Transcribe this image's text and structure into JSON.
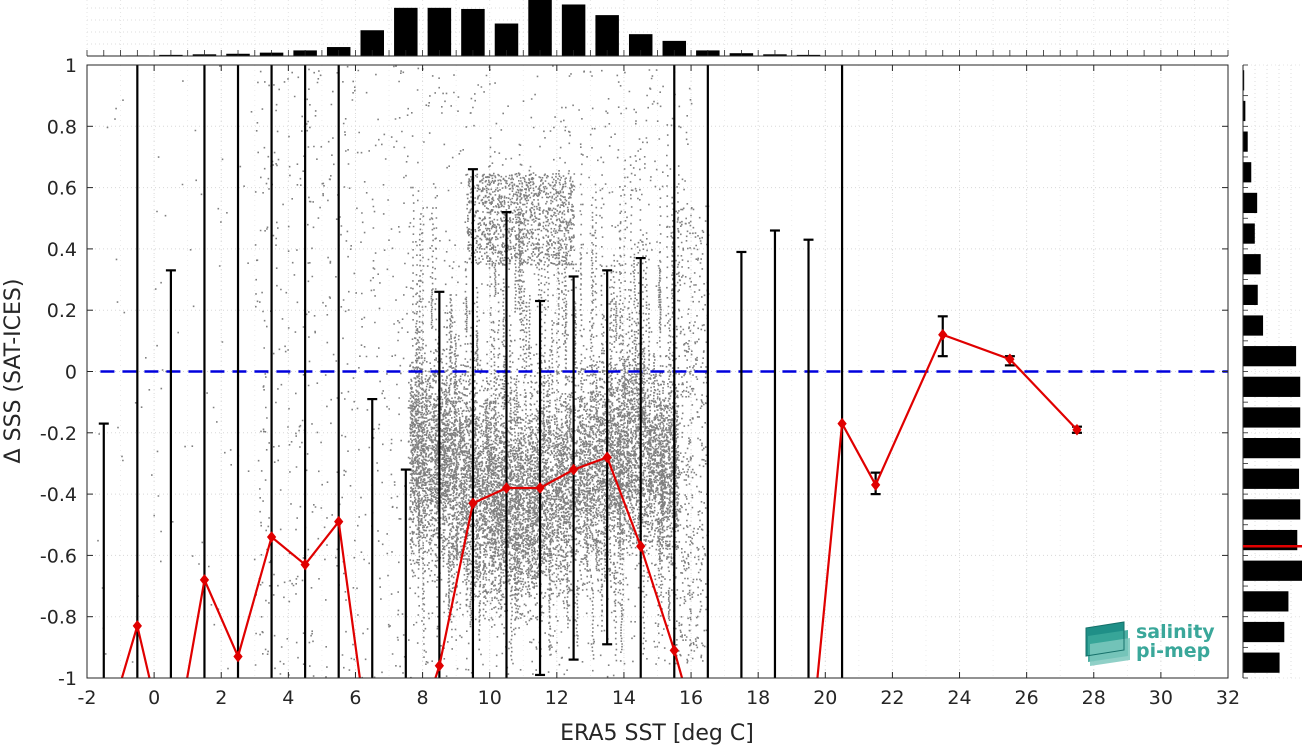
{
  "chart_data": {
    "type": "scatter",
    "xlabel": "ERA5 SST [deg C]",
    "ylabel": "Δ SSS (SAT-ICES)",
    "xlim": [
      -2,
      32
    ],
    "ylim": [
      -1,
      1
    ],
    "xticks": [
      -2,
      0,
      2,
      4,
      6,
      8,
      10,
      12,
      14,
      16,
      18,
      20,
      22,
      24,
      26,
      28,
      30,
      32
    ],
    "yticks": [
      -1,
      -0.8,
      -0.6,
      -0.4,
      -0.2,
      0,
      0.2,
      0.4,
      0.6,
      0.8,
      1
    ],
    "xtick_labels": [
      "-2",
      "0",
      "2",
      "4",
      "6",
      "8",
      "10",
      "12",
      "14",
      "16",
      "18",
      "20",
      "22",
      "24",
      "26",
      "28",
      "30",
      "32"
    ],
    "ytick_labels": [
      "-1",
      "-0.8",
      "-0.6",
      "-0.4",
      "-0.2",
      "0",
      "0.2",
      "0.4",
      "0.6",
      "0.8",
      "1"
    ],
    "grid": true,
    "zero_line": {
      "y": 0,
      "color": "#0000dd",
      "style": "dashed"
    },
    "scatter_color": "#808080",
    "mean_series": {
      "color": "#e00000",
      "points": [
        {
          "x": -1.5,
          "y": -1.2,
          "err_hi": -0.17,
          "err_lo": -1.2
        },
        {
          "x": -0.5,
          "y": -0.83,
          "err_hi": 1.05,
          "err_lo": -1.05
        },
        {
          "x": 0.5,
          "y": -1.3,
          "err_hi": 0.33,
          "err_lo": -1.3
        },
        {
          "x": 1.5,
          "y": -0.68,
          "err_hi": 1.05,
          "err_lo": -1.05
        },
        {
          "x": 2.5,
          "y": -0.93,
          "err_hi": 1.05,
          "err_lo": -1.05
        },
        {
          "x": 3.5,
          "y": -0.54,
          "err_hi": 1.05,
          "err_lo": -1.05
        },
        {
          "x": 4.5,
          "y": -0.63,
          "err_hi": 1.05,
          "err_lo": -1.05
        },
        {
          "x": 5.5,
          "y": -0.49,
          "err_hi": 1.05,
          "err_lo": -1.05
        },
        {
          "x": 6.5,
          "y": -1.3,
          "err_hi": -0.09,
          "err_lo": -1.3
        },
        {
          "x": 7.5,
          "y": -1.3,
          "err_hi": -0.32,
          "err_lo": -1.3
        },
        {
          "x": 8.5,
          "y": -0.96,
          "err_hi": 0.26,
          "err_lo": -1.1
        },
        {
          "x": 9.5,
          "y": -0.43,
          "err_hi": 0.66,
          "err_lo": -1.1
        },
        {
          "x": 10.5,
          "y": -0.38,
          "err_hi": 0.52,
          "err_lo": -1.1
        },
        {
          "x": 11.5,
          "y": -0.38,
          "err_hi": 0.23,
          "err_lo": -0.99
        },
        {
          "x": 12.5,
          "y": -0.32,
          "err_hi": 0.31,
          "err_lo": -0.94
        },
        {
          "x": 13.5,
          "y": -0.28,
          "err_hi": 0.33,
          "err_lo": -0.89
        },
        {
          "x": 14.5,
          "y": -0.57,
          "err_hi": 0.37,
          "err_lo": -1.1
        },
        {
          "x": 15.5,
          "y": -0.91,
          "err_hi": 1.05,
          "err_lo": -1.05
        },
        {
          "x": 16.5,
          "y": -1.3,
          "err_hi": 1.05,
          "err_lo": -1.3
        },
        {
          "x": 17.5,
          "y": -1.3,
          "err_hi": 0.39,
          "err_lo": -1.3
        },
        {
          "x": 18.5,
          "y": -1.3,
          "err_hi": 0.46,
          "err_lo": -1.3
        },
        {
          "x": 19.5,
          "y": -1.3,
          "err_hi": 0.43,
          "err_lo": -1.3
        },
        {
          "x": 20.5,
          "y": -0.17,
          "err_hi": 1.05,
          "err_lo": -1.05
        },
        {
          "x": 21.5,
          "y": -0.37,
          "err_hi": -0.33,
          "err_lo": -0.4
        },
        {
          "x": 23.5,
          "y": 0.12,
          "err_hi": 0.18,
          "err_lo": 0.05
        },
        {
          "x": 25.5,
          "y": 0.04,
          "err_hi": 0.05,
          "err_lo": 0.02
        },
        {
          "x": 27.5,
          "y": -0.19,
          "err_hi": -0.18,
          "err_lo": -0.2
        }
      ]
    },
    "x_histogram": {
      "bin_centers": [
        -0.5,
        0.5,
        1.5,
        2.5,
        3.5,
        4.5,
        5.5,
        6.5,
        7.5,
        8.5,
        9.5,
        10.5,
        11.5,
        12.5,
        13.5,
        14.5,
        15.5,
        16.5,
        17.5,
        18.5,
        19.5
      ],
      "relative_counts": [
        0.01,
        0.02,
        0.03,
        0.04,
        0.06,
        0.1,
        0.16,
        0.46,
        0.86,
        0.86,
        0.84,
        0.58,
        1.0,
        0.92,
        0.73,
        0.39,
        0.27,
        0.1,
        0.05,
        0.03,
        0.02
      ]
    },
    "y_histogram": {
      "bin_centers": [
        0.95,
        0.85,
        0.75,
        0.65,
        0.55,
        0.45,
        0.35,
        0.25,
        0.15,
        0.05,
        -0.05,
        -0.15,
        -0.25,
        -0.35,
        -0.45,
        -0.55,
        -0.65,
        -0.75,
        -0.85,
        -0.95
      ],
      "relative_counts": [
        0.02,
        0.04,
        0.08,
        0.14,
        0.24,
        0.2,
        0.3,
        0.25,
        0.34,
        0.9,
        0.97,
        0.97,
        0.97,
        0.95,
        0.97,
        0.92,
        1.0,
        0.77,
        0.7,
        0.62
      ],
      "mean_marker_y": -0.57,
      "mean_marker_color": "#e00000"
    }
  },
  "logo": {
    "line1": "salinity",
    "line2": "pi-mep"
  }
}
